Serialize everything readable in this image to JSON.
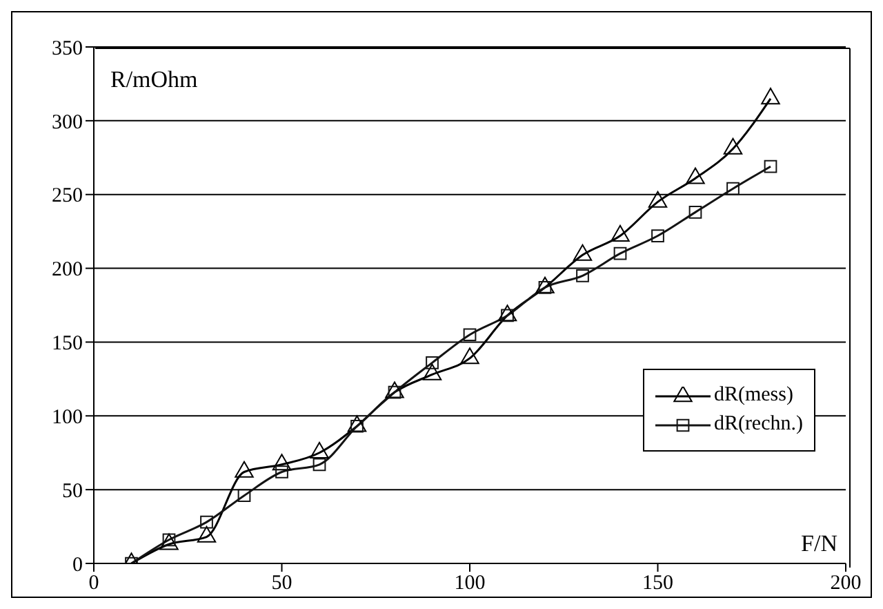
{
  "chart_data": {
    "type": "line",
    "xlabel": "F/N",
    "ylabel": "R/mOhm",
    "x": [
      10,
      20,
      30,
      40,
      50,
      60,
      70,
      80,
      90,
      100,
      110,
      120,
      130,
      140,
      150,
      160,
      170,
      180
    ],
    "series": [
      {
        "name": "dR(mess)",
        "color": "#000000",
        "marker": "triangle",
        "values": [
          0,
          13,
          18,
          62,
          67,
          75,
          93,
          116,
          128,
          139,
          168,
          187,
          209,
          222,
          245,
          261,
          281,
          315
        ]
      },
      {
        "name": "dR(rechn.)",
        "color": "#141414",
        "marker": "square",
        "values": [
          0,
          16,
          28,
          46,
          62,
          67,
          93,
          116,
          136,
          155,
          168,
          187,
          195,
          210,
          222,
          238,
          254,
          269
        ]
      }
    ],
    "xlim": [
      0,
      200
    ],
    "xticks": [
      0,
      50,
      100,
      150,
      200
    ],
    "ylim": [
      0,
      350
    ],
    "yticks": [
      0,
      50,
      100,
      150,
      200,
      250,
      300,
      350
    ],
    "grid": "y",
    "legend": "right",
    "line_style": "solid"
  }
}
